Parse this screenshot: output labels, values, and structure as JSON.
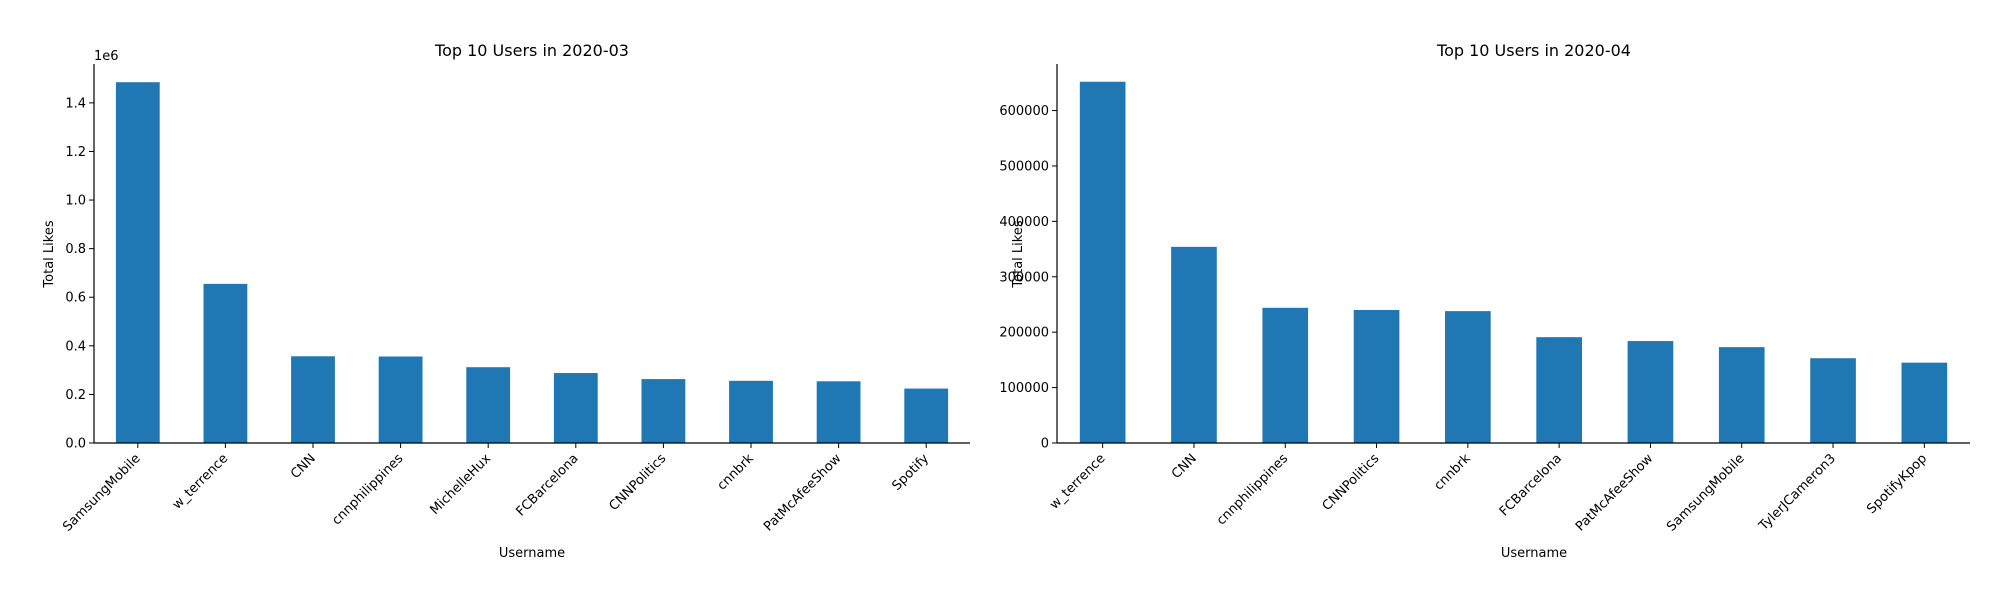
{
  "chart_data": [
    {
      "type": "bar",
      "title": "Top 10 Users in 2020-03",
      "xlabel": "Username",
      "ylabel": "Total Likes",
      "y_offset_label": "1e6",
      "categories": [
        "SamsungMobile",
        "w_terrence",
        "CNN",
        "cnnphilippines",
        "MichelleHux",
        "FCBarcelona",
        "CNNPolitics",
        "cnnbrk",
        "PatMcAfeeShow",
        "Spotify"
      ],
      "values": [
        1485000,
        655000,
        357000,
        356000,
        312000,
        288000,
        263000,
        256000,
        254000,
        224000
      ],
      "ylim": [
        0,
        1560000
      ],
      "yticks": [
        0,
        200000,
        400000,
        600000,
        800000,
        1000000,
        1200000,
        1400000
      ],
      "ytick_labels": [
        "0.0",
        "0.2",
        "0.4",
        "0.6",
        "0.8",
        "1.0",
        "1.2",
        "1.4"
      ],
      "bar_color": "#1f77b4",
      "grid": false
    },
    {
      "type": "bar",
      "title": "Top 10 Users in 2020-04",
      "xlabel": "Username",
      "ylabel": "Total Likes",
      "y_offset_label": "",
      "categories": [
        "w_terrence",
        "CNN",
        "cnnphilippines",
        "CNNPolitics",
        "cnnbrk",
        "FCBarcelona",
        "PatMcAfeeShow",
        "SamsungMobile",
        "TylerJCameron3",
        "SpotifyKpop"
      ],
      "values": [
        652000,
        354000,
        244000,
        240000,
        238000,
        191000,
        184000,
        173000,
        153000,
        145000
      ],
      "ylim": [
        0,
        684000
      ],
      "yticks": [
        0,
        100000,
        200000,
        300000,
        400000,
        500000,
        600000
      ],
      "ytick_labels": [
        "0",
        "100000",
        "200000",
        "300000",
        "400000",
        "500000",
        "600000"
      ],
      "bar_color": "#1f77b4",
      "grid": false
    }
  ]
}
